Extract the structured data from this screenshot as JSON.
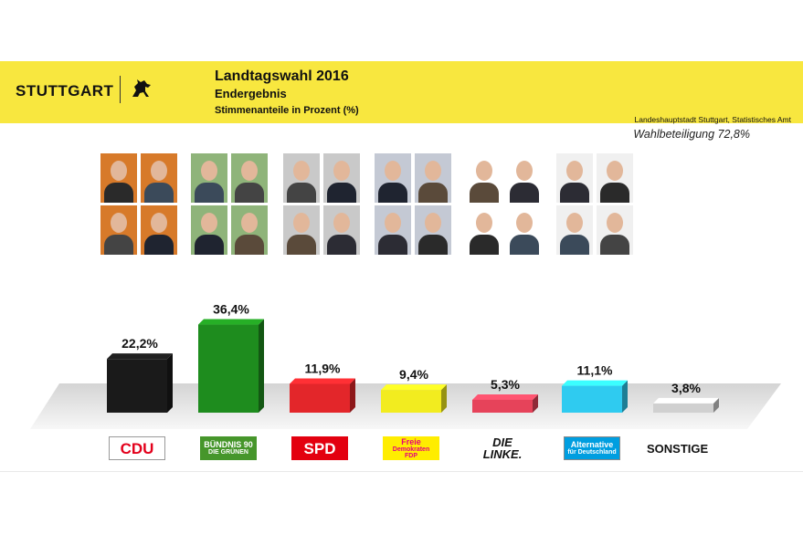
{
  "header": {
    "logo_text": "STUTTGART",
    "title": "Landtagswahl 2016",
    "subtitle": "Endergebnis",
    "subtitle2": "Stimmenanteile in Prozent (%)",
    "source": "Landeshauptstadt Stuttgart, Statistisches Amt",
    "turnout": "Wahlbeteiligung 72,8%",
    "banner_color": "#f8e73f"
  },
  "chart_data": {
    "type": "bar",
    "title": "Landtagswahl 2016",
    "subtitle": "Endergebnis",
    "ylabel": "Stimmenanteile in Prozent (%)",
    "categories": [
      "CDU",
      "BÜNDNIS 90 DIE GRÜNEN",
      "SPD",
      "Freie Demokraten FDP",
      "DIE LINKE.",
      "Alternative für Deutschland",
      "SONSTIGE"
    ],
    "values": [
      22.2,
      36.4,
      11.9,
      9.4,
      5.3,
      11.1,
      3.8
    ],
    "value_labels": [
      "22,2%",
      "36,4%",
      "11,9%",
      "9,4%",
      "5,3%",
      "11,1%",
      "3,8%"
    ],
    "colors": [
      "#1a1a1a",
      "#1e8c1e",
      "#e3262a",
      "#f2ec1f",
      "#e6435a",
      "#2fcbf0",
      "#d0d0d0"
    ],
    "grid": false,
    "legend": "none",
    "style": "3d-bars"
  },
  "parties": [
    {
      "logo_text": "CDU",
      "color": "#e3001b",
      "bg": "#ffffff",
      "border": "#999999"
    },
    {
      "logo_text": "BÜNDNIS 90",
      "logo_text2": "DIE GRÜNEN",
      "color": "#ffffff",
      "bg": "#46962b",
      "border": "#46962b"
    },
    {
      "logo_text": "SPD",
      "color": "#ffffff",
      "bg": "#e3000f",
      "border": "#e3000f"
    },
    {
      "logo_text": "Freie",
      "logo_text2": "Demokraten",
      "logo_text3": "FDP",
      "color": "#e5007d",
      "bg": "#ffed00",
      "border": "#ffed00"
    },
    {
      "logo_text": "DIE LINKE.",
      "color": "#111111",
      "bg": "#ffffff",
      "border": "#ffffff"
    },
    {
      "logo_text": "Alternative",
      "logo_text2": "für Deutschland",
      "color": "#ffffff",
      "bg": "#009ee0",
      "border": "#888888"
    },
    {
      "logo_text": "SONSTIGE",
      "color": "#111111",
      "bg": "#ffffff",
      "border": "#ffffff"
    }
  ]
}
